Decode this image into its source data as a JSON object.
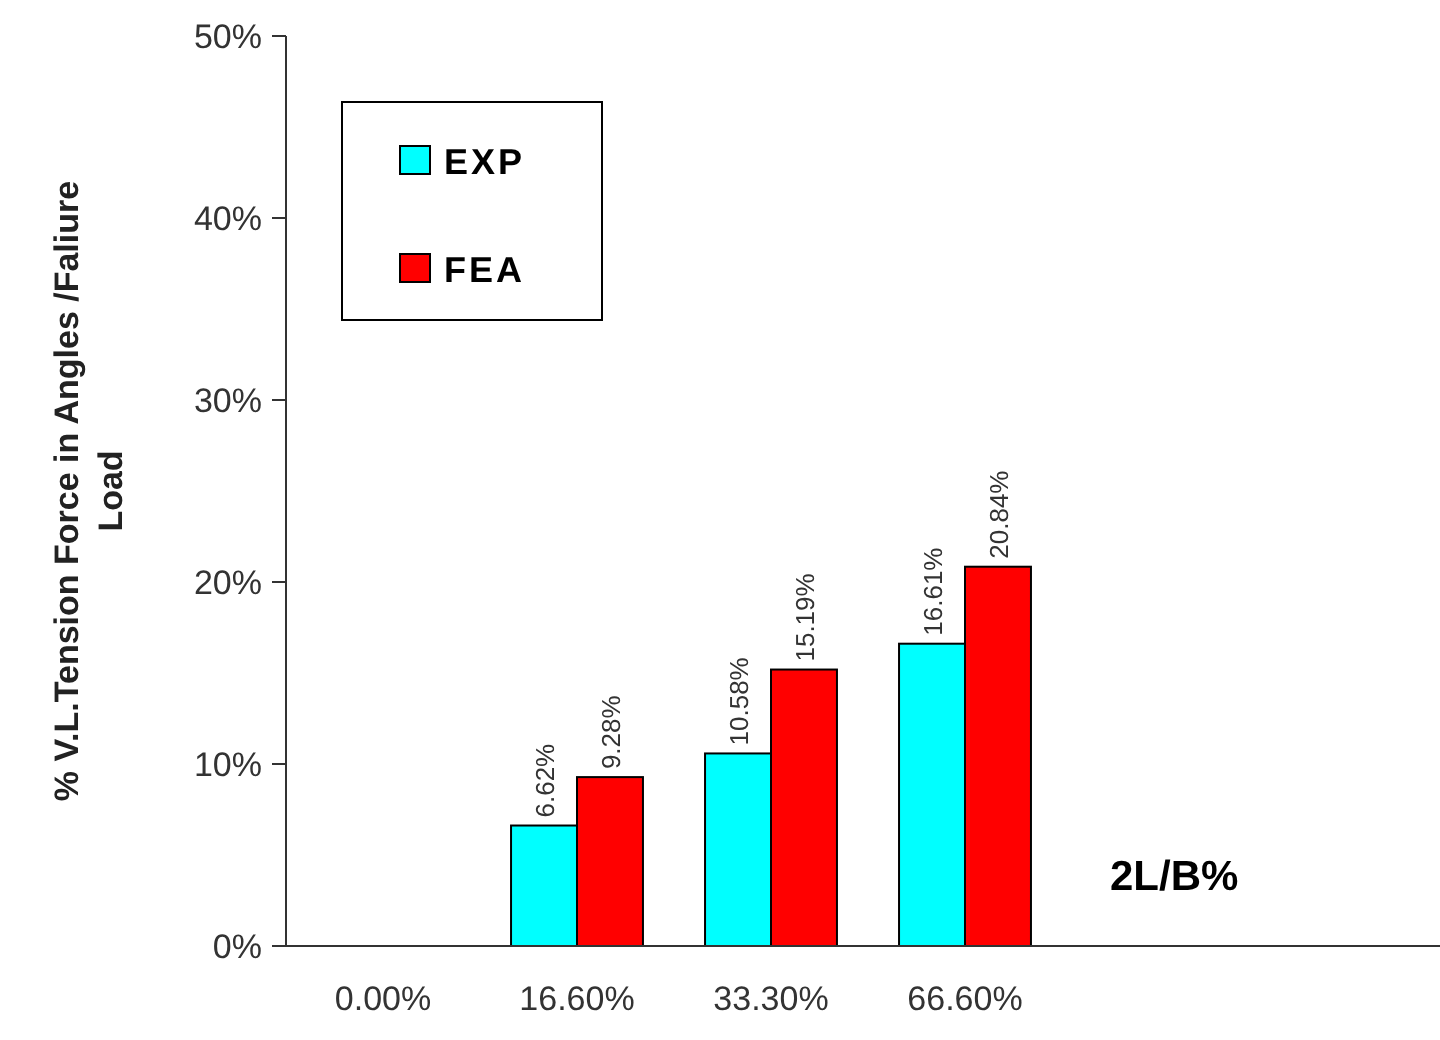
{
  "chart_data": {
    "type": "bar",
    "xlabel": "2L/B%",
    "ylabel": "% V.L.Tension  Force in Angles /Faliure\nLoad",
    "categories": [
      "0.00%",
      "16.60%",
      "33.30%",
      "66.60%",
      null,
      null
    ],
    "series": [
      {
        "name": "EXP",
        "color": "#00ffff",
        "values": [
          null,
          6.62,
          10.58,
          16.61,
          null,
          null
        ],
        "value_labels": [
          null,
          "6.62%",
          "10.58%",
          "16.61%",
          null,
          null
        ]
      },
      {
        "name": "FEA",
        "color": "#ff0000",
        "values": [
          null,
          9.28,
          15.19,
          20.84,
          null,
          null
        ],
        "value_labels": [
          null,
          "9.28%",
          "15.19%",
          "20.84%",
          null,
          null
        ]
      }
    ],
    "ylim": [
      0,
      50
    ],
    "yticks": [
      {
        "value": 0,
        "label": "0%"
      },
      {
        "value": 10,
        "label": "10%"
      },
      {
        "value": 20,
        "label": "20%"
      },
      {
        "value": 30,
        "label": "30%"
      },
      {
        "value": 40,
        "label": "40%"
      },
      {
        "value": 50,
        "label": "50%"
      }
    ],
    "grid": false,
    "legend": "top left"
  }
}
